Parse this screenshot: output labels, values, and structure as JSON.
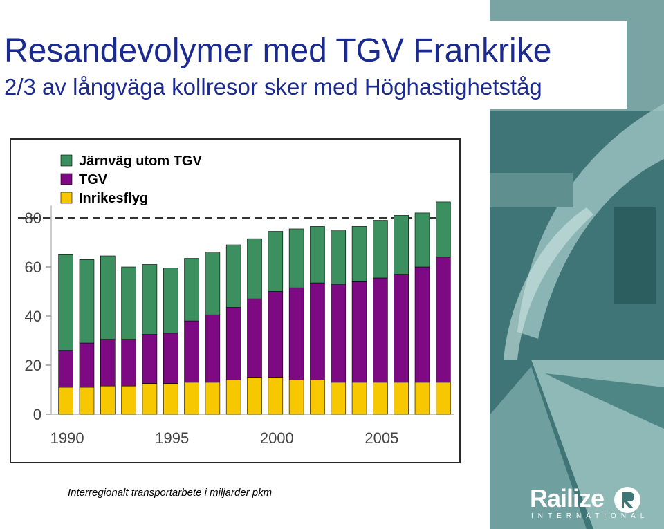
{
  "slide": {
    "title": "Resandevolymer med TGV Frankrike",
    "subtitle": "2/3 av långväga kollresor sker med Höghastighetståg",
    "caption": "Interregionalt transportarbete i miljarder pkm"
  },
  "logo": {
    "name": "Railize",
    "tagline": "INTERNATIONAL",
    "icon": "railize-r-icon"
  },
  "colors": {
    "title": "#1b2a8f",
    "rail": "#3c9060",
    "tgv": "#7d0a82",
    "air": "#f7c800"
  },
  "chart_data": {
    "type": "bar",
    "stacked": true,
    "xlabel": "",
    "ylabel": "",
    "ylim": [
      0,
      90
    ],
    "yticks": [
      0,
      20,
      40,
      60,
      80
    ],
    "xtick_labels": [
      "1990",
      "1995",
      "2000",
      "2005"
    ],
    "reference_line": 80,
    "legend_position": "top-left",
    "x": [
      1990,
      1991,
      1992,
      1993,
      1994,
      1995,
      1996,
      1997,
      1998,
      1999,
      2000,
      2001,
      2002,
      2003,
      2004,
      2005,
      2006,
      2007,
      2008
    ],
    "series": [
      {
        "name": "Inrikesflyg",
        "color": "#f7c800",
        "values": [
          11,
          11,
          11.5,
          11.5,
          12.5,
          12.5,
          13,
          13,
          14,
          15,
          15,
          14,
          14,
          13,
          13,
          13,
          13,
          13,
          13
        ]
      },
      {
        "name": "TGV",
        "color": "#7d0a82",
        "values": [
          15,
          18,
          19,
          19,
          20,
          20.5,
          25,
          27.5,
          29.5,
          32,
          35,
          37.5,
          39.5,
          40,
          41,
          42.5,
          44,
          47,
          51
        ]
      },
      {
        "name": "Järnväg utom TGV",
        "color": "#3c9060",
        "values": [
          39,
          34,
          34,
          29.5,
          28.5,
          26.5,
          25.5,
          25.5,
          25.5,
          24.5,
          24.5,
          24,
          23,
          22,
          22.5,
          23.5,
          24,
          22,
          22.5
        ]
      }
    ],
    "legend": [
      "Järnväg utom TGV",
      "TGV",
      "Inrikesflyg"
    ]
  }
}
